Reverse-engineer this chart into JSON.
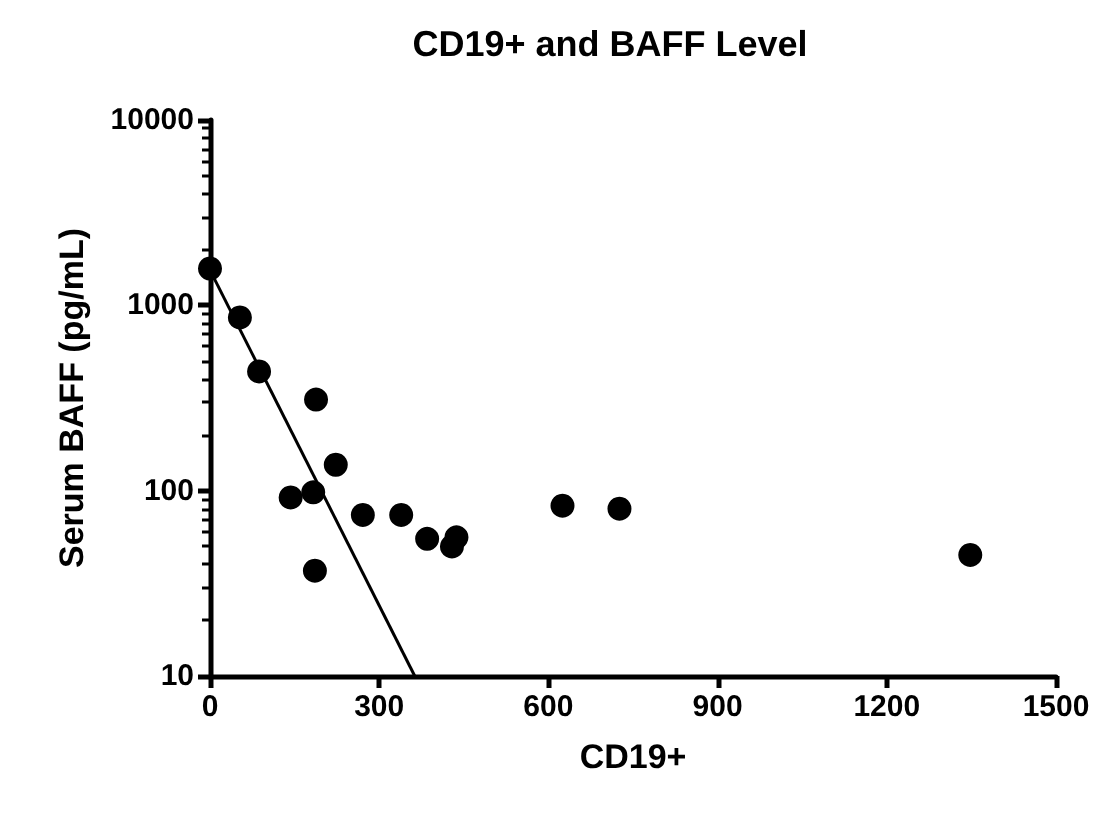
{
  "chart_data": {
    "type": "scatter",
    "title": "CD19+ and BAFF Level",
    "xlabel": "CD19+",
    "ylabel": "Serum BAFF (pg/mL)",
    "log": "y",
    "xlim": [
      0,
      1500
    ],
    "xticks": [
      0,
      300,
      600,
      900,
      1200,
      1500
    ],
    "ylim": [
      10,
      10000
    ],
    "yticks": [
      10,
      100,
      1000,
      10000
    ],
    "grid": false,
    "series": [
      {
        "marker": "circle",
        "color": "#000000",
        "x": [
          0,
          53,
          87,
          188,
          223,
          143,
          183,
          186,
          271,
          339,
          385,
          429,
          437,
          625,
          726,
          1348
        ],
        "values": [
          1580,
          860,
          440,
          310,
          138,
          92,
          98,
          37,
          74,
          74,
          55,
          50,
          56,
          83,
          80,
          45
        ]
      },
      {
        "type": "line",
        "marker": "none",
        "color": "#000000",
        "line_style": "solid",
        "x": [
          0,
          363
        ],
        "values": [
          1550,
          10
        ]
      }
    ]
  }
}
